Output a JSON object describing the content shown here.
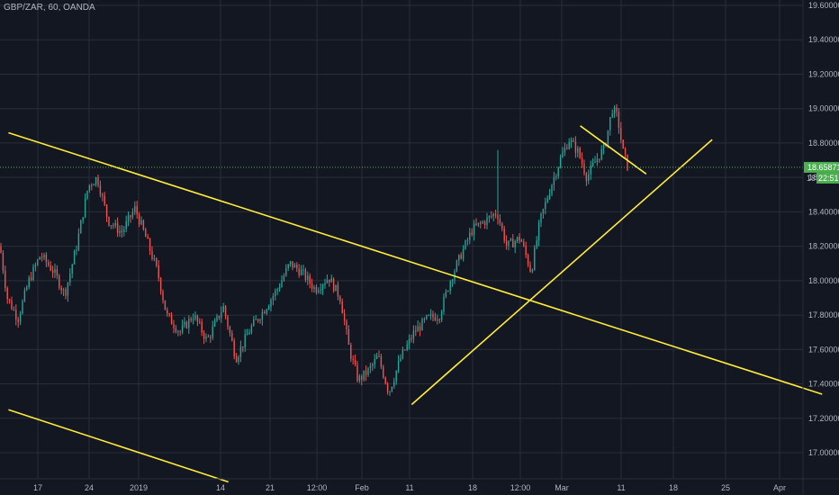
{
  "symbol_header": "GBP/ZAR, 60, OANDA",
  "colors": {
    "background": "#131722",
    "grid": "#2a2e39",
    "axis_text": "#b2b5be",
    "up_candle": "#26a69a",
    "down_candle": "#ef5350",
    "trend_line": "#ffeb3b",
    "price_line": "#4caf50",
    "price_badge": "#4caf50"
  },
  "chart_data": {
    "type": "candlestick",
    "title": "GBP/ZAR, 60, OANDA",
    "y_ticks": [
      "19.60000",
      "19.40000",
      "19.20000",
      "19.00000",
      "18.80000",
      "18.60000",
      "18.40000",
      "18.20000",
      "18.00000",
      "17.80000",
      "17.60000",
      "17.40000",
      "17.20000",
      "17.00000"
    ],
    "x_ticks": [
      "17",
      "24",
      "2019",
      "14",
      "21",
      "12:00",
      "Feb",
      "11",
      "18",
      "12:00",
      "Mar",
      "11",
      "18",
      "25",
      "Apr"
    ],
    "ylim": [
      16.8,
      19.62
    ],
    "grid": true,
    "current_price": "18.65871",
    "countdown": "22:51",
    "countdown_price_prefix": "18",
    "price_path": [
      [
        0,
        18.2
      ],
      [
        8,
        17.9
      ],
      [
        20,
        17.78
      ],
      [
        32,
        18.0
      ],
      [
        45,
        18.15
      ],
      [
        60,
        18.05
      ],
      [
        72,
        17.92
      ],
      [
        85,
        18.2
      ],
      [
        98,
        18.55
      ],
      [
        108,
        18.6
      ],
      [
        120,
        18.35
      ],
      [
        135,
        18.28
      ],
      [
        150,
        18.42
      ],
      [
        162,
        18.25
      ],
      [
        175,
        18.05
      ],
      [
        185,
        17.8
      ],
      [
        200,
        17.7
      ],
      [
        215,
        17.8
      ],
      [
        230,
        17.65
      ],
      [
        248,
        17.85
      ],
      [
        262,
        17.55
      ],
      [
        278,
        17.72
      ],
      [
        292,
        17.82
      ],
      [
        308,
        17.95
      ],
      [
        322,
        18.1
      ],
      [
        335,
        18.05
      ],
      [
        350,
        17.95
      ],
      [
        365,
        18.02
      ],
      [
        378,
        17.9
      ],
      [
        388,
        17.6
      ],
      [
        398,
        17.42
      ],
      [
        410,
        17.48
      ],
      [
        420,
        17.56
      ],
      [
        432,
        17.35
      ],
      [
        445,
        17.55
      ],
      [
        460,
        17.7
      ],
      [
        475,
        17.78
      ],
      [
        488,
        17.8
      ],
      [
        500,
        18.0
      ],
      [
        512,
        18.15
      ],
      [
        525,
        18.3
      ],
      [
        540,
        18.35
      ],
      [
        552,
        18.4
      ],
      [
        563,
        18.2
      ],
      [
        578,
        18.25
      ],
      [
        590,
        18.05
      ],
      [
        600,
        18.35
      ],
      [
        612,
        18.55
      ],
      [
        622,
        18.7
      ],
      [
        632,
        18.82
      ],
      [
        642,
        18.75
      ],
      [
        652,
        18.6
      ],
      [
        662,
        18.7
      ],
      [
        672,
        18.78
      ],
      [
        680,
        19.0
      ],
      [
        686,
        18.95
      ],
      [
        692,
        18.75
      ],
      [
        698,
        18.65
      ]
    ],
    "trend_lines": [
      {
        "from": [
          "2018-12-13",
          18.86
        ],
        "to": [
          "2019-04-03",
          17.34
        ]
      },
      {
        "from": [
          "2018-12-13",
          17.25
        ],
        "to": [
          "2019-01-12",
          16.83
        ]
      },
      {
        "from": [
          "2019-02-06",
          17.28
        ],
        "to": [
          "2019-03-19",
          18.82
        ]
      },
      {
        "from": [
          "2019-03-01",
          18.9
        ],
        "to": [
          "2019-03-10",
          18.62
        ]
      }
    ],
    "candle_spacing": 2.4
  }
}
